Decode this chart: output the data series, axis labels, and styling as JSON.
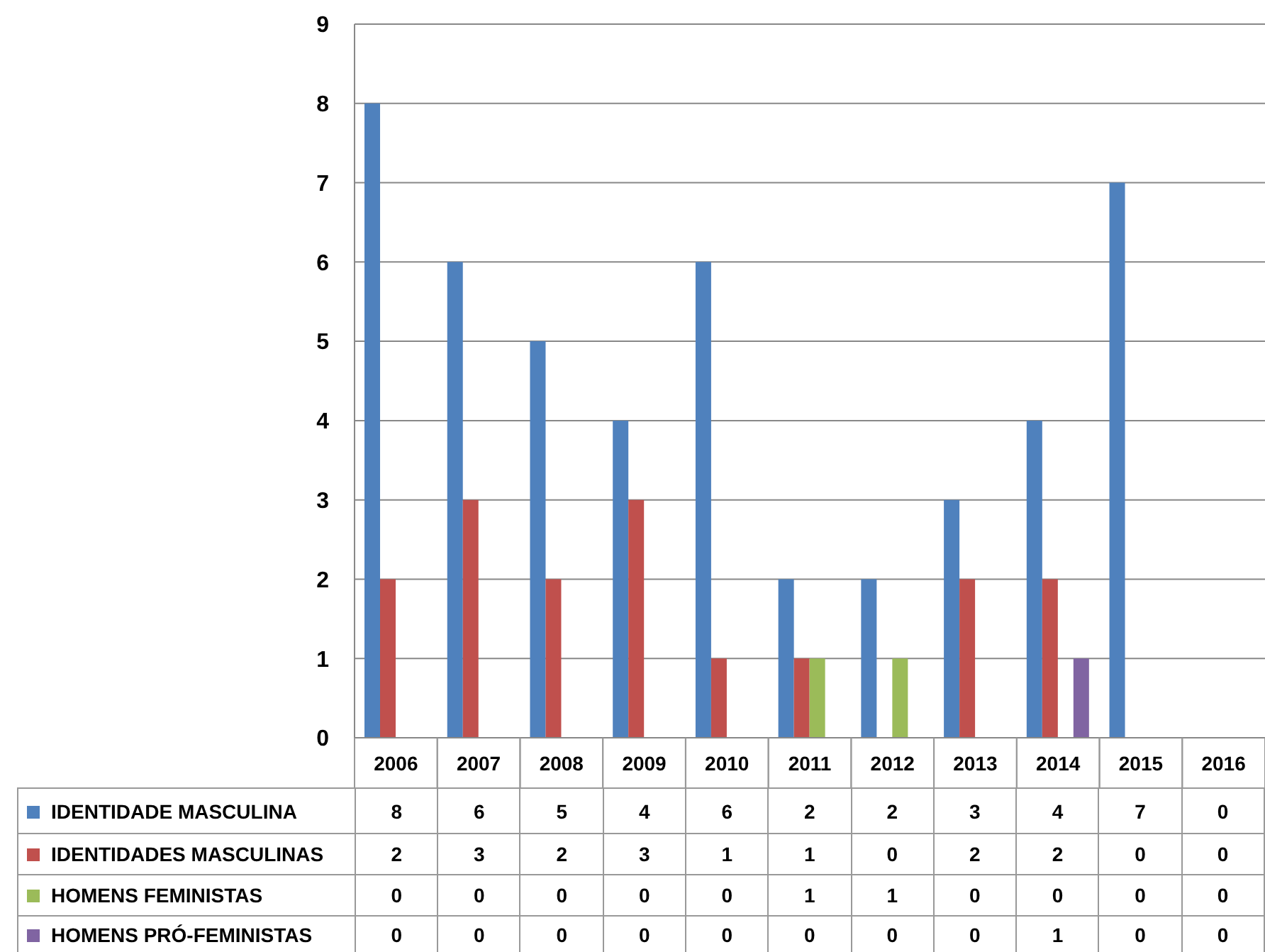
{
  "chart_data": {
    "type": "bar",
    "categories": [
      "2006",
      "2007",
      "2008",
      "2009",
      "2010",
      "2011",
      "2012",
      "2013",
      "2014",
      "2015",
      "2016"
    ],
    "series": [
      {
        "name": "IDENTIDADE MASCULINA",
        "color": "#4f81bd",
        "values": [
          8,
          6,
          5,
          4,
          6,
          2,
          2,
          3,
          4,
          7,
          0
        ]
      },
      {
        "name": "IDENTIDADES MASCULINAS",
        "color": "#c0504d",
        "values": [
          2,
          3,
          2,
          3,
          1,
          1,
          0,
          2,
          2,
          0,
          0
        ]
      },
      {
        "name": "HOMENS FEMINISTAS",
        "color": "#9bbb59",
        "values": [
          0,
          0,
          0,
          0,
          0,
          1,
          1,
          0,
          0,
          0,
          0
        ]
      },
      {
        "name": "HOMENS PRÓ-FEMINISTAS",
        "color": "#8064a2",
        "values": [
          0,
          0,
          0,
          0,
          0,
          0,
          0,
          0,
          1,
          0,
          0
        ]
      }
    ],
    "ylim": [
      0,
      9
    ],
    "yticks": [
      0,
      1,
      2,
      3,
      4,
      5,
      6,
      7,
      8,
      9
    ],
    "grid": "y",
    "legend": "bottom",
    "data_labels": true
  }
}
